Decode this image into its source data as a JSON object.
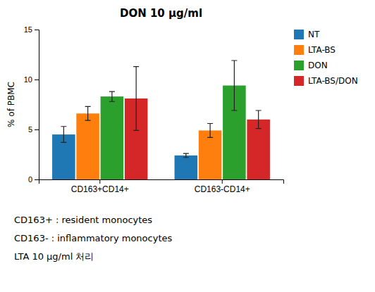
{
  "chart_data": {
    "type": "bar",
    "title": "DON 10 μg/ml",
    "ylabel": "% of PBMC",
    "categories": [
      "CD163+CD14+",
      "CD163-CD14+"
    ],
    "series": [
      {
        "name": "NT",
        "values": [
          4.5,
          2.4
        ],
        "errors": [
          0.8,
          0.2
        ]
      },
      {
        "name": "LTA-BS",
        "values": [
          6.6,
          4.9
        ],
        "errors": [
          0.7,
          0.7
        ]
      },
      {
        "name": "DON",
        "values": [
          8.3,
          9.4
        ],
        "errors": [
          0.5,
          2.5
        ]
      },
      {
        "name": "LTA-BS/DON",
        "values": [
          8.1,
          6.0
        ],
        "errors": [
          3.2,
          0.9
        ]
      }
    ],
    "ylim": [
      0,
      15
    ],
    "yticks": [
      0,
      5,
      10,
      15
    ],
    "grid": false,
    "legend": "right",
    "annotations": [
      "CD163+ : resident monocytes",
      "CD163- : inflammatory monocytes",
      "LTA 10 μg/ml 처리"
    ]
  }
}
